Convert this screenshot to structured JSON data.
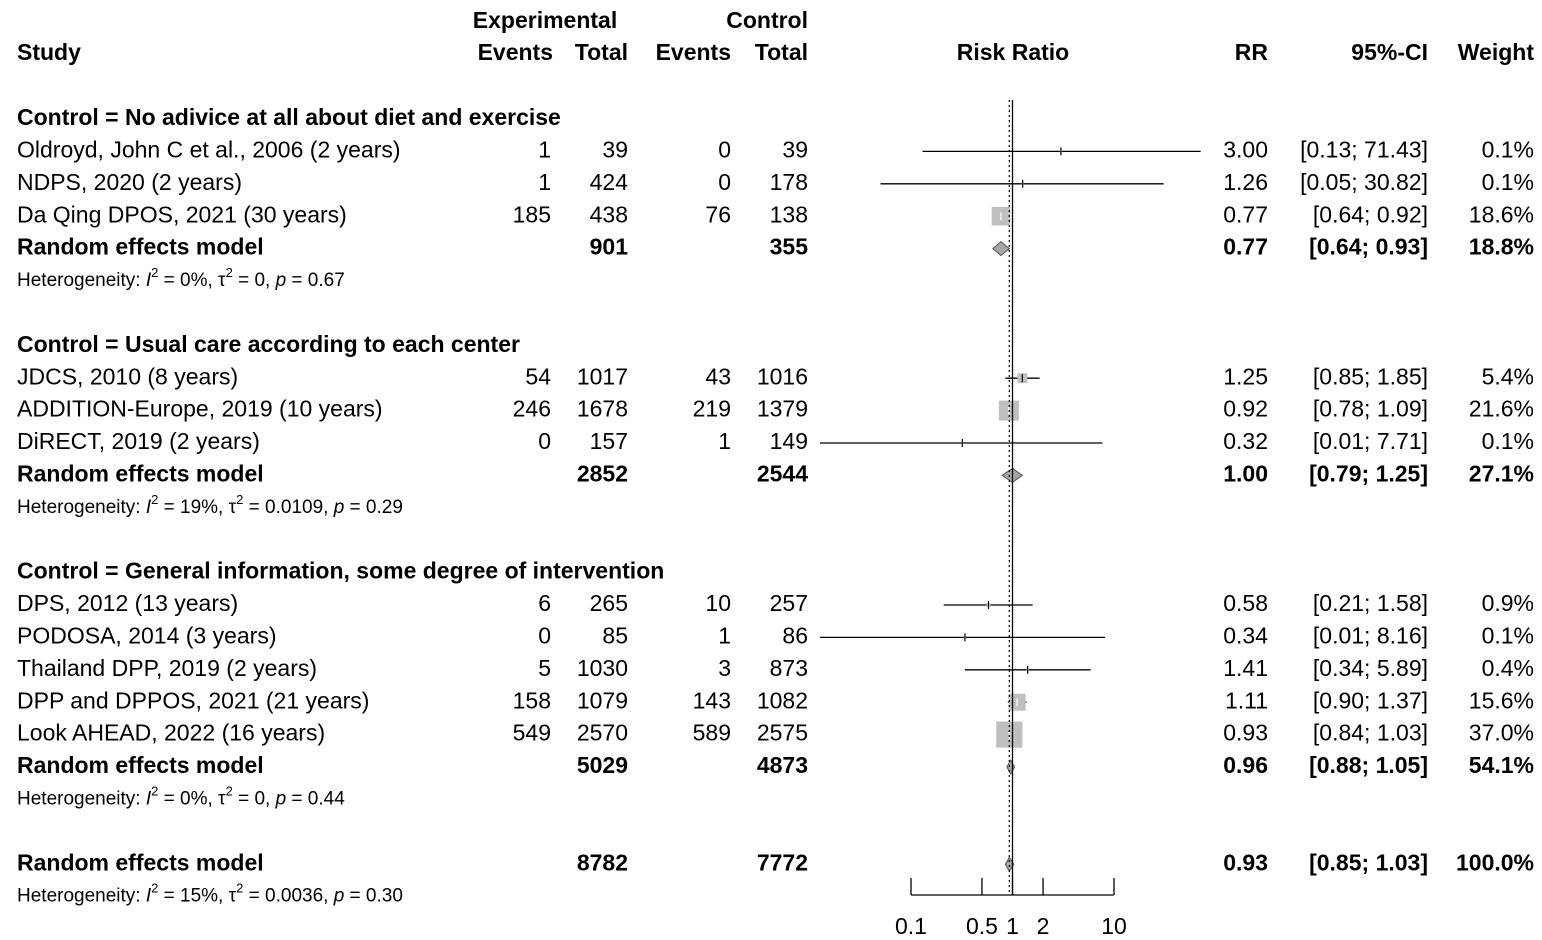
{
  "chart_data": {
    "type": "forest",
    "log_x": true,
    "xlim": [
      0.1,
      10
    ],
    "xticks": [
      0.1,
      0.5,
      1,
      2,
      10
    ],
    "x_label": "Risk Ratio",
    "headers": {
      "study": "Study",
      "experimental": "Experimental",
      "control": "Control",
      "events": "Events",
      "total": "Total",
      "rr": "RR",
      "ci": "95%-CI",
      "weight": "Weight"
    },
    "square_color": "#bfbfbf",
    "diamond_color": "#a6a6a6",
    "groups": [
      {
        "title": "Control = No adivice at all about diet and exercise",
        "studies": [
          {
            "name": "Oldroyd, John C et al., 2006 (2 years)",
            "e_events": 1,
            "e_total": 39,
            "c_events": 0,
            "c_total": 39,
            "rr": 3.0,
            "rr_label": "3.00",
            "ci": [
              0.13,
              71.43
            ],
            "ci_label": "[0.13; 71.43]",
            "weight": 0.1,
            "weight_label": "0.1%"
          },
          {
            "name": "NDPS, 2020 (2 years)",
            "e_events": 1,
            "e_total": 424,
            "c_events": 0,
            "c_total": 178,
            "rr": 1.26,
            "rr_label": "1.26",
            "ci": [
              0.05,
              30.82
            ],
            "ci_label": "[0.05; 30.82]",
            "weight": 0.1,
            "weight_label": "0.1%"
          },
          {
            "name": "Da Qing DPOS, 2021 (30 years)",
            "e_events": 185,
            "e_total": 438,
            "c_events": 76,
            "c_total": 138,
            "rr": 0.77,
            "rr_label": "0.77",
            "ci": [
              0.64,
              0.92
            ],
            "ci_label": "[0.64; 0.92]",
            "weight": 18.6,
            "weight_label": "18.6%"
          }
        ],
        "model": {
          "name": "Random effects model",
          "e_total": 901,
          "c_total": 355,
          "rr": 0.77,
          "rr_label": "0.77",
          "ci": [
            0.64,
            0.93
          ],
          "ci_label": "[0.64; 0.93]",
          "weight": 18.8,
          "weight_label": "18.8%"
        },
        "heterogeneity": [
          [
            "Heterogeneity: ",
            ""
          ],
          [
            "I",
            "i"
          ],
          [
            "2",
            "sup"
          ],
          [
            " = 0%, ",
            ""
          ],
          [
            "τ",
            ""
          ],
          [
            "2",
            "sup"
          ],
          [
            " = 0, ",
            ""
          ],
          [
            "p",
            "i"
          ],
          [
            " = 0.67",
            ""
          ]
        ]
      },
      {
        "title": "Control = Usual care according to each center",
        "studies": [
          {
            "name": "JDCS, 2010 (8 years)",
            "e_events": 54,
            "e_total": 1017,
            "c_events": 43,
            "c_total": 1016,
            "rr": 1.25,
            "rr_label": "1.25",
            "ci": [
              0.85,
              1.85
            ],
            "ci_label": "[0.85; 1.85]",
            "weight": 5.4,
            "weight_label": "5.4%"
          },
          {
            "name": "ADDITION-Europe, 2019 (10 years)",
            "e_events": 246,
            "e_total": 1678,
            "c_events": 219,
            "c_total": 1379,
            "rr": 0.92,
            "rr_label": "0.92",
            "ci": [
              0.78,
              1.09
            ],
            "ci_label": "[0.78; 1.09]",
            "weight": 21.6,
            "weight_label": "21.6%"
          },
          {
            "name": "DiRECT, 2019 (2 years)",
            "e_events": 0,
            "e_total": 157,
            "c_events": 1,
            "c_total": 149,
            "rr": 0.32,
            "rr_label": "0.32",
            "ci": [
              0.01,
              7.71
            ],
            "ci_label": "[0.01; 7.71]",
            "weight": 0.1,
            "weight_label": "0.1%"
          }
        ],
        "model": {
          "name": "Random effects model",
          "e_total": 2852,
          "c_total": 2544,
          "rr": 1.0,
          "rr_label": "1.00",
          "ci": [
            0.79,
            1.25
          ],
          "ci_label": "[0.79; 1.25]",
          "weight": 27.1,
          "weight_label": "27.1%"
        },
        "heterogeneity": [
          [
            "Heterogeneity: ",
            ""
          ],
          [
            "I",
            "i"
          ],
          [
            "2",
            "sup"
          ],
          [
            " = 19%, ",
            ""
          ],
          [
            "τ",
            ""
          ],
          [
            "2",
            "sup"
          ],
          [
            " = 0.0109, ",
            ""
          ],
          [
            "p",
            "i"
          ],
          [
            " = 0.29",
            ""
          ]
        ]
      },
      {
        "title": "Control = General information, some degree of intervention",
        "studies": [
          {
            "name": "DPS, 2012 (13 years)",
            "e_events": 6,
            "e_total": 265,
            "c_events": 10,
            "c_total": 257,
            "rr": 0.58,
            "rr_label": "0.58",
            "ci": [
              0.21,
              1.58
            ],
            "ci_label": "[0.21; 1.58]",
            "weight": 0.9,
            "weight_label": "0.9%"
          },
          {
            "name": "PODOSA, 2014 (3 years)",
            "e_events": 0,
            "e_total": 85,
            "c_events": 1,
            "c_total": 86,
            "rr": 0.34,
            "rr_label": "0.34",
            "ci": [
              0.01,
              8.16
            ],
            "ci_label": "[0.01; 8.16]",
            "weight": 0.1,
            "weight_label": "0.1%"
          },
          {
            "name": "Thailand DPP, 2019 (2 years)",
            "e_events": 5,
            "e_total": 1030,
            "c_events": 3,
            "c_total": 873,
            "rr": 1.41,
            "rr_label": "1.41",
            "ci": [
              0.34,
              5.89
            ],
            "ci_label": "[0.34; 5.89]",
            "weight": 0.4,
            "weight_label": "0.4%"
          },
          {
            "name": "DPP and DPPOS, 2021 (21 years)",
            "e_events": 158,
            "e_total": 1079,
            "c_events": 143,
            "c_total": 1082,
            "rr": 1.11,
            "rr_label": "1.11",
            "ci": [
              0.9,
              1.37
            ],
            "ci_label": "[0.90; 1.37]",
            "weight": 15.6,
            "weight_label": "15.6%"
          },
          {
            "name": "Look AHEAD, 2022 (16 years)",
            "e_events": 549,
            "e_total": 2570,
            "c_events": 589,
            "c_total": 2575,
            "rr": 0.93,
            "rr_label": "0.93",
            "ci": [
              0.84,
              1.03
            ],
            "ci_label": "[0.84; 1.03]",
            "weight": 37.0,
            "weight_label": "37.0%"
          }
        ],
        "model": {
          "name": "Random effects model",
          "e_total": 5029,
          "c_total": 4873,
          "rr": 0.96,
          "rr_label": "0.96",
          "ci": [
            0.88,
            1.05
          ],
          "ci_label": "[0.88; 1.05]",
          "weight": 54.1,
          "weight_label": "54.1%"
        },
        "heterogeneity": [
          [
            "Heterogeneity: ",
            ""
          ],
          [
            "I",
            "i"
          ],
          [
            "2",
            "sup"
          ],
          [
            " = 0%, ",
            ""
          ],
          [
            "τ",
            ""
          ],
          [
            "2",
            "sup"
          ],
          [
            " = 0, ",
            ""
          ],
          [
            "p",
            "i"
          ],
          [
            " = 0.44",
            ""
          ]
        ]
      }
    ],
    "overall": {
      "name": "Random effects model",
      "e_total": 8782,
      "c_total": 7772,
      "rr": 0.93,
      "rr_label": "0.93",
      "ci": [
        0.85,
        1.03
      ],
      "ci_label": "[0.85; 1.03]",
      "weight": 100.0,
      "weight_label": "100.0%",
      "heterogeneity": [
        [
          "Heterogeneity: ",
          ""
        ],
        [
          "I",
          "i"
        ],
        [
          "2",
          "sup"
        ],
        [
          " = 15%, ",
          ""
        ],
        [
          "τ",
          ""
        ],
        [
          "2",
          "sup"
        ],
        [
          " = 0.0036, ",
          ""
        ],
        [
          "p",
          "i"
        ],
        [
          " = 0.30",
          ""
        ]
      ]
    }
  }
}
